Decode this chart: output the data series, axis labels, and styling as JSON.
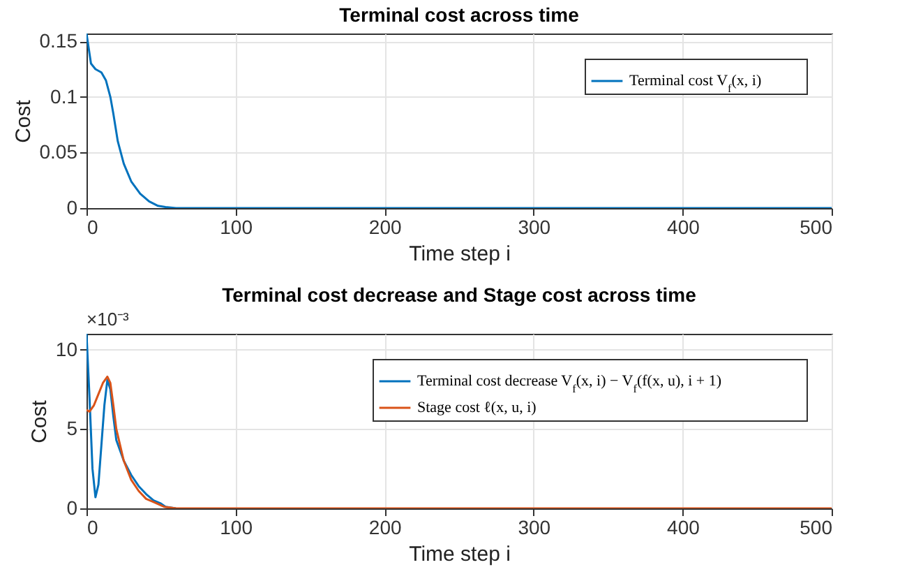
{
  "chart_data": [
    {
      "type": "line",
      "title": "Terminal cost across time",
      "xlabel": "Time step i",
      "ylabel": "Cost",
      "xlim": [
        0,
        500
      ],
      "xticks": [
        0,
        100,
        200,
        300,
        400,
        500
      ],
      "ylim": [
        0,
        0.157
      ],
      "yticks": [
        0,
        0.05,
        0.1,
        0.15
      ],
      "grid": true,
      "legend": "top right",
      "x": [
        0,
        3,
        6,
        10,
        13,
        16,
        18,
        21,
        25,
        30,
        36,
        42,
        48,
        53,
        60,
        80,
        100,
        200,
        300,
        400,
        500
      ],
      "series": [
        {
          "name": "Terminal cost V$_{f}$(x, i)",
          "color": "#0072bd",
          "values": [
            0.157,
            0.13,
            0.125,
            0.122,
            0.115,
            0.1,
            0.085,
            0.06,
            0.04,
            0.024,
            0.013,
            0.006,
            0.002,
            0.001,
            0,
            0,
            0,
            0,
            0,
            0,
            0
          ]
        }
      ]
    },
    {
      "type": "line",
      "title": "Terminal cost decrease and Stage cost across time",
      "xlabel": "Time step i",
      "ylabel": "Cost",
      "annotations": [
        "×10⁻³"
      ],
      "xlim": [
        0,
        500
      ],
      "xticks": [
        0,
        100,
        200,
        300,
        400,
        500
      ],
      "ylim": [
        0,
        11
      ],
      "yticks": [
        0,
        5,
        10
      ],
      "grid": true,
      "legend": "top right",
      "series": [
        {
          "name": "Terminal cost decrease V$_{f}$(x, i) − V$_{f}$(f(x, u), i + 1)",
          "color": "#0072bd",
          "x": [
            0,
            2,
            4,
            6,
            8,
            10,
            12,
            14,
            16,
            18,
            20,
            25,
            30,
            35,
            40,
            45,
            50,
            53,
            60
          ],
          "values": [
            11,
            7,
            2.5,
            0.7,
            1.5,
            4,
            6.5,
            8.1,
            7.5,
            5.8,
            4.3,
            3,
            2.1,
            1.4,
            0.9,
            0.5,
            0.3,
            0.1,
            0
          ]
        },
        {
          "name": "Stage cost ℓ(x, u, i)",
          "color": "#d95319",
          "x": [
            0,
            2,
            5,
            8,
            11,
            14,
            16,
            18,
            20,
            25,
            30,
            35,
            40,
            45,
            52,
            60,
            100,
            200,
            300,
            400,
            500
          ],
          "values": [
            6.2,
            6.1,
            6.5,
            7.2,
            7.9,
            8.3,
            7.9,
            6.5,
            5,
            3,
            1.8,
            1.1,
            0.6,
            0.4,
            0.1,
            0,
            0,
            0,
            0,
            0,
            0
          ]
        }
      ]
    }
  ]
}
